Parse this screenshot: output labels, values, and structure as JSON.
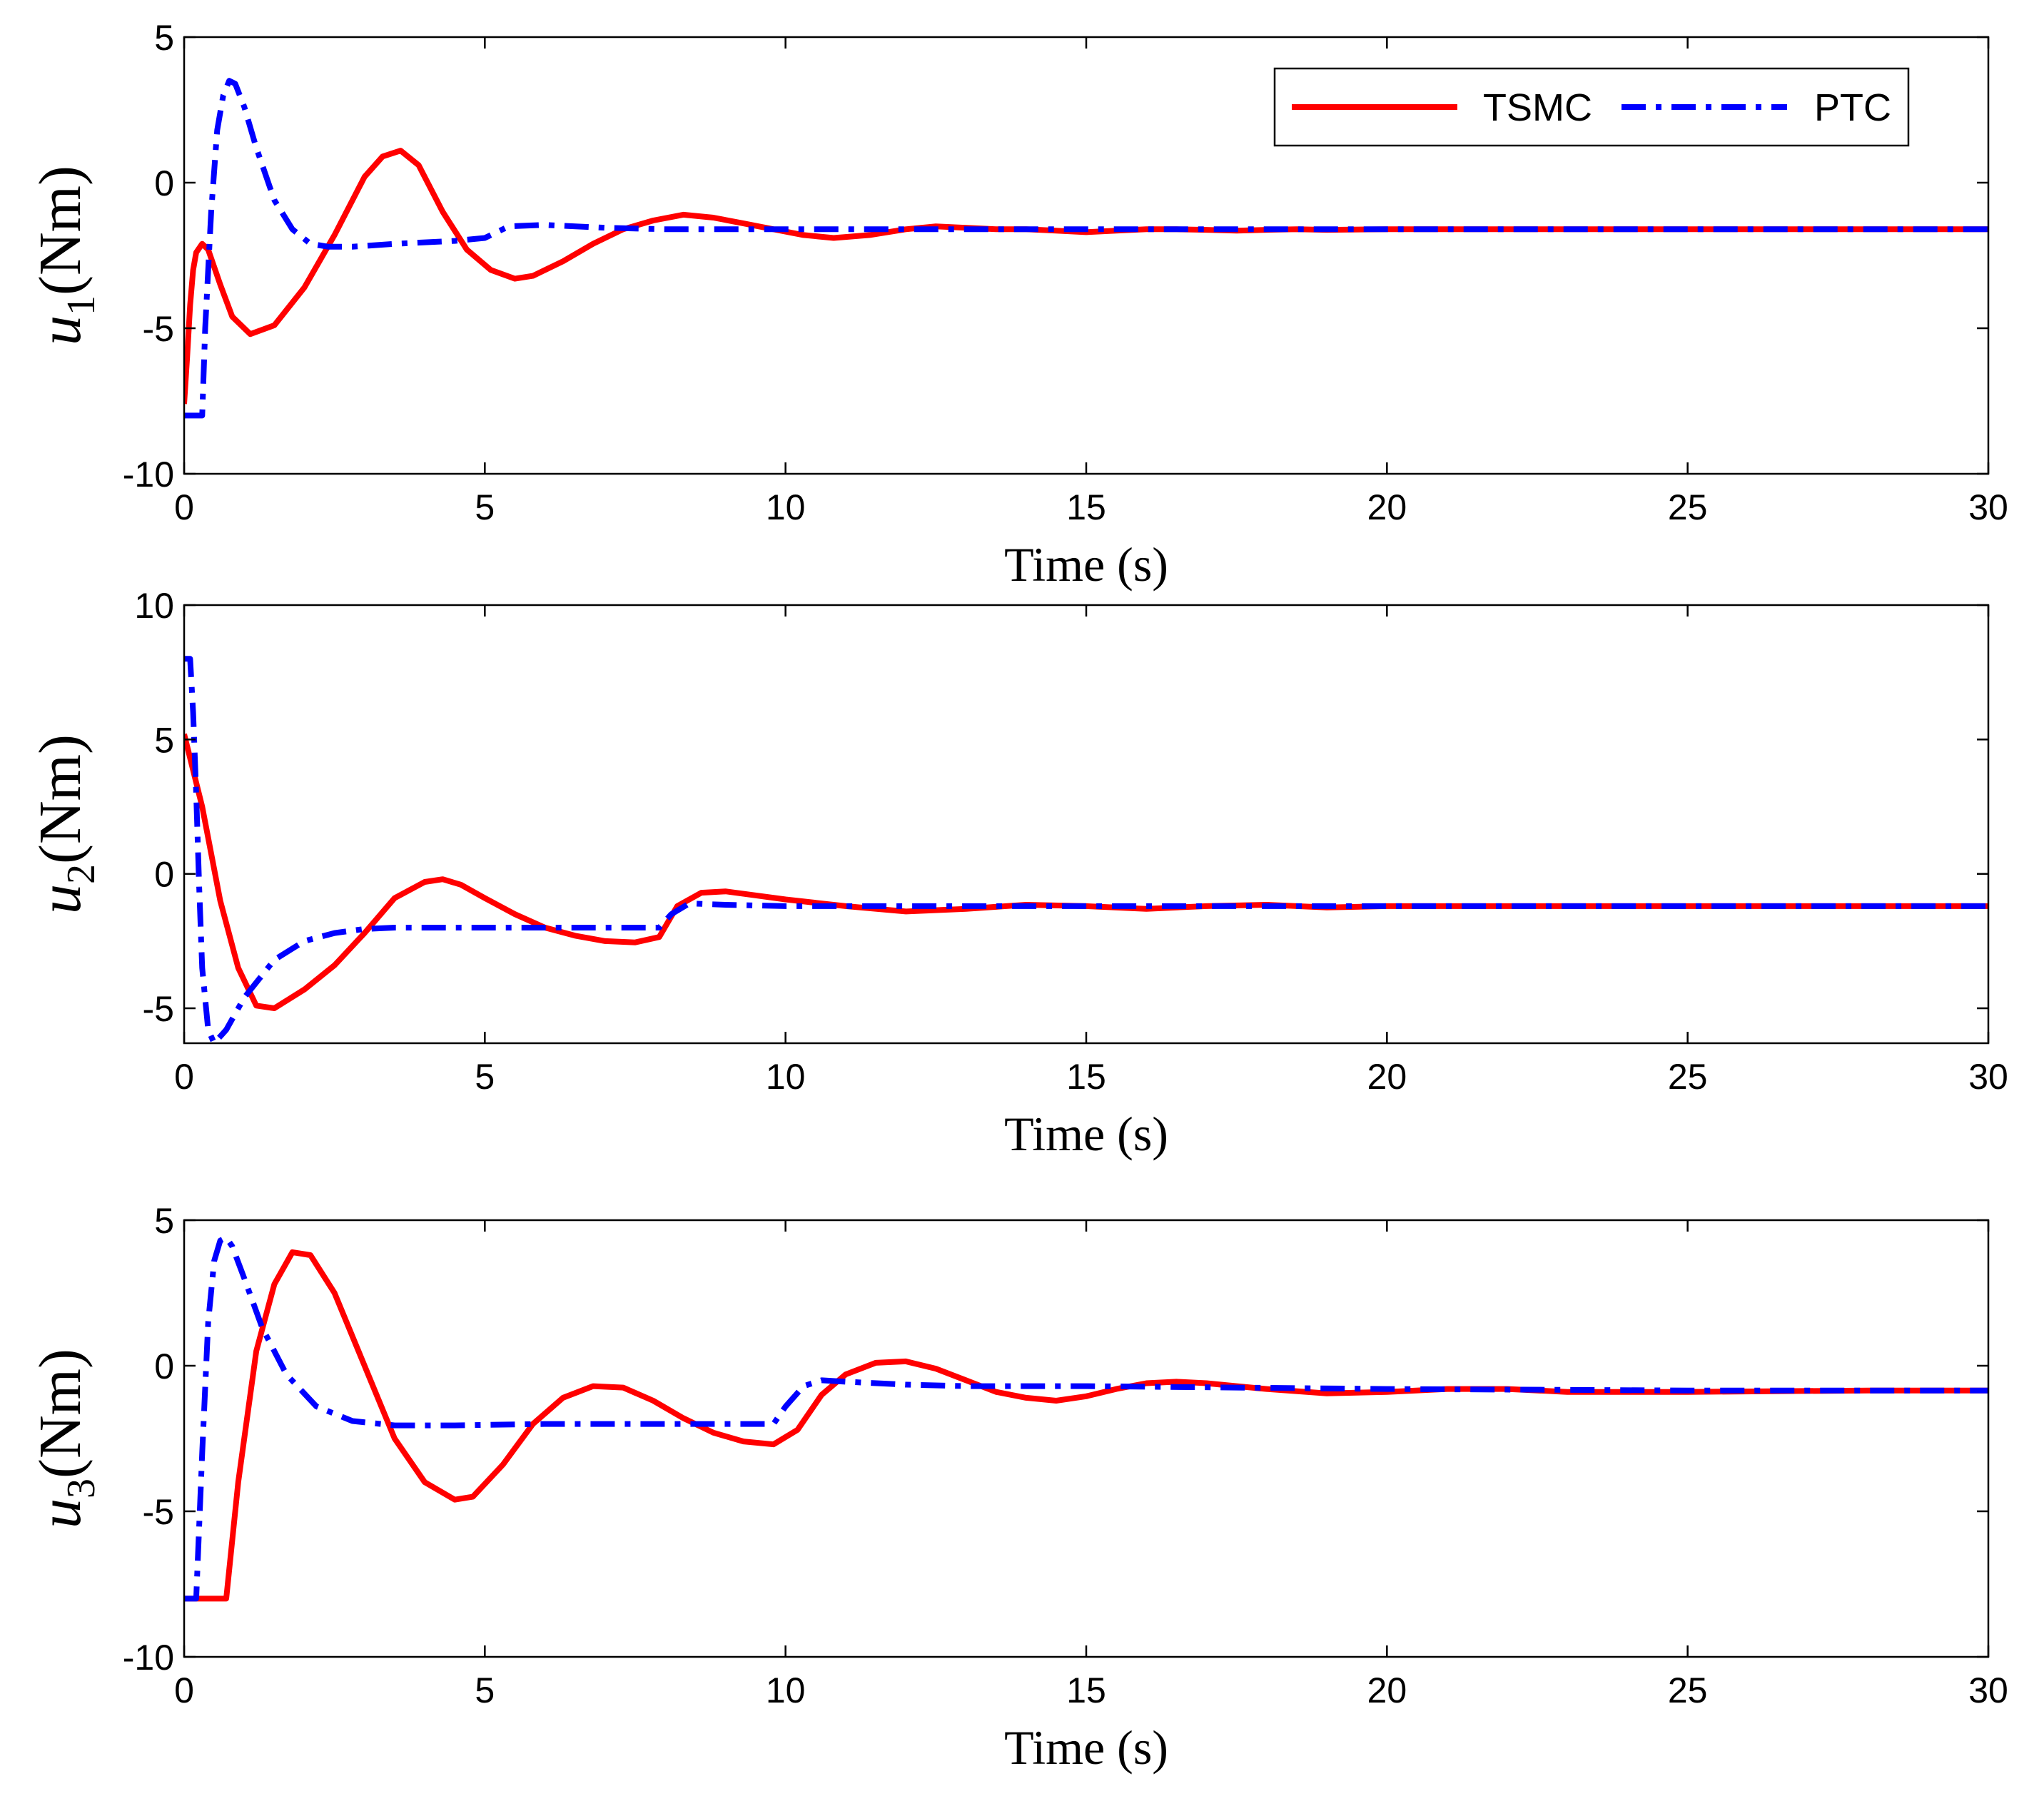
{
  "chart_data": [
    {
      "type": "line",
      "ylabel_var": "u",
      "ylabel_sub": "1",
      "ylabel_unit": "(Nm)",
      "xlabel": "Time (s)",
      "xlim": [
        0,
        30
      ],
      "ylim": [
        -10,
        5
      ],
      "xticks": [
        "0",
        "5",
        "10",
        "15",
        "20",
        "25",
        "30"
      ],
      "yticks": [
        "-10",
        "-5",
        "0",
        "5"
      ],
      "legend": "top-right",
      "series": [
        {
          "name": "TSMC",
          "color": "#ff0000",
          "style": "solid",
          "x": [
            0,
            0.05,
            0.1,
            0.15,
            0.2,
            0.3,
            0.4,
            0.6,
            0.8,
            1.1,
            1.5,
            2,
            2.5,
            3,
            3.3,
            3.6,
            3.9,
            4.3,
            4.7,
            5.1,
            5.5,
            5.8,
            6.3,
            6.8,
            7.3,
            7.8,
            8.3,
            8.8,
            9.3,
            9.8,
            10.3,
            10.8,
            11.4,
            12,
            12.5,
            13,
            13.5,
            14,
            14.5,
            15,
            15.5,
            16,
            16.5,
            17,
            17.5,
            18,
            18.5,
            19,
            20,
            22,
            25,
            28,
            30
          ],
          "y": [
            -7.6,
            -6.0,
            -4.2,
            -3.0,
            -2.4,
            -2.1,
            -2.3,
            -3.5,
            -4.6,
            -5.2,
            -4.9,
            -3.6,
            -1.8,
            0.2,
            0.9,
            1.1,
            0.6,
            -1.0,
            -2.3,
            -3.0,
            -3.3,
            -3.2,
            -2.7,
            -2.1,
            -1.6,
            -1.3,
            -1.1,
            -1.2,
            -1.4,
            -1.6,
            -1.8,
            -1.9,
            -1.8,
            -1.6,
            -1.5,
            -1.55,
            -1.6,
            -1.6,
            -1.65,
            -1.7,
            -1.65,
            -1.6,
            -1.6,
            -1.62,
            -1.65,
            -1.62,
            -1.6,
            -1.62,
            -1.6,
            -1.6,
            -1.6,
            -1.6,
            -1.6
          ]
        },
        {
          "name": "PTC",
          "color": "#0000ff",
          "style": "dashdot",
          "x": [
            0,
            0.3,
            0.35,
            0.45,
            0.55,
            0.65,
            0.75,
            0.85,
            1.0,
            1.2,
            1.5,
            1.8,
            2.1,
            2.4,
            2.8,
            3.5,
            4.5,
            5.0,
            5.4,
            6.0,
            7.0,
            8.0,
            10,
            12,
            15,
            20,
            25,
            30
          ],
          "y": [
            -8.0,
            -8.0,
            -5.0,
            -1.0,
            1.8,
            3.0,
            3.5,
            3.4,
            2.6,
            1.2,
            -0.6,
            -1.6,
            -2.1,
            -2.2,
            -2.2,
            -2.1,
            -2.0,
            -1.9,
            -1.5,
            -1.45,
            -1.55,
            -1.6,
            -1.6,
            -1.6,
            -1.6,
            -1.6,
            -1.6,
            -1.6
          ]
        }
      ]
    },
    {
      "type": "line",
      "ylabel_var": "u",
      "ylabel_sub": "2",
      "ylabel_unit": "(Nm)",
      "xlabel": "Time (s)",
      "xlim": [
        0,
        30
      ],
      "ylim": [
        -6.3,
        10
      ],
      "xticks": [
        "0",
        "5",
        "10",
        "15",
        "20",
        "25",
        "30"
      ],
      "yticks": [
        "-5",
        "0",
        "5",
        "10"
      ],
      "legend": "none",
      "series": [
        {
          "name": "TSMC",
          "color": "#ff0000",
          "style": "solid",
          "x": [
            0,
            0.3,
            0.6,
            0.9,
            1.2,
            1.5,
            2.0,
            2.5,
            3.0,
            3.5,
            4.0,
            4.3,
            4.6,
            5.0,
            5.5,
            6.0,
            6.5,
            7.0,
            7.5,
            7.9,
            8.2,
            8.6,
            9.0,
            9.5,
            10,
            11,
            12,
            13,
            14,
            15,
            16,
            17,
            18,
            19,
            20,
            22,
            25,
            30
          ],
          "y": [
            5.2,
            2.5,
            -1.0,
            -3.5,
            -4.9,
            -5.0,
            -4.3,
            -3.4,
            -2.2,
            -0.9,
            -0.3,
            -0.2,
            -0.4,
            -0.9,
            -1.5,
            -2.0,
            -2.3,
            -2.5,
            -2.55,
            -2.35,
            -1.2,
            -0.7,
            -0.65,
            -0.8,
            -0.95,
            -1.2,
            -1.4,
            -1.3,
            -1.15,
            -1.2,
            -1.3,
            -1.2,
            -1.15,
            -1.25,
            -1.2,
            -1.2,
            -1.2,
            -1.2
          ]
        },
        {
          "name": "PTC",
          "color": "#0000ff",
          "style": "dashdot",
          "x": [
            0,
            0.1,
            0.15,
            0.2,
            0.25,
            0.3,
            0.4,
            0.5,
            0.7,
            1.0,
            1.5,
            2.0,
            2.5,
            3.0,
            3.5,
            4.5,
            6,
            7.9,
            8.1,
            8.4,
            9.0,
            10,
            12,
            15,
            20,
            25,
            30
          ],
          "y": [
            8.0,
            8.0,
            6.0,
            3.0,
            -0.5,
            -3.5,
            -5.8,
            -6.3,
            -5.8,
            -4.6,
            -3.2,
            -2.5,
            -2.2,
            -2.05,
            -2.0,
            -2.0,
            -2.0,
            -2.0,
            -1.5,
            -1.1,
            -1.15,
            -1.2,
            -1.2,
            -1.2,
            -1.2,
            -1.2,
            -1.2
          ]
        }
      ]
    },
    {
      "type": "line",
      "ylabel_var": "u",
      "ylabel_sub": "3",
      "ylabel_unit": "(Nm)",
      "xlabel": "Time (s)",
      "xlim": [
        0,
        30
      ],
      "ylim": [
        -10,
        5
      ],
      "xticks": [
        "0",
        "5",
        "10",
        "15",
        "20",
        "25",
        "30"
      ],
      "yticks": [
        "-10",
        "-5",
        "0",
        "5"
      ],
      "legend": "none",
      "series": [
        {
          "name": "TSMC",
          "color": "#ff0000",
          "style": "solid",
          "x": [
            0,
            0.7,
            0.9,
            1.2,
            1.5,
            1.8,
            2.1,
            2.5,
            3.0,
            3.5,
            4.0,
            4.5,
            4.8,
            5.3,
            5.8,
            6.3,
            6.8,
            7.3,
            7.8,
            8.3,
            8.8,
            9.3,
            9.8,
            10.2,
            10.6,
            11.0,
            11.5,
            12.0,
            12.5,
            13.0,
            13.5,
            14.0,
            14.5,
            15.0,
            15.5,
            16.0,
            16.5,
            17.0,
            17.5,
            18.0,
            19.0,
            20.0,
            21.0,
            22.0,
            23.0,
            25.0,
            28.0,
            30.0
          ],
          "y": [
            -8.0,
            -8.0,
            -4.0,
            0.5,
            2.8,
            3.9,
            3.8,
            2.5,
            0.0,
            -2.5,
            -4.0,
            -4.6,
            -4.5,
            -3.4,
            -2.0,
            -1.1,
            -0.7,
            -0.75,
            -1.2,
            -1.8,
            -2.3,
            -2.6,
            -2.7,
            -2.2,
            -1.0,
            -0.3,
            0.1,
            0.15,
            -0.1,
            -0.5,
            -0.9,
            -1.1,
            -1.2,
            -1.05,
            -0.8,
            -0.6,
            -0.55,
            -0.6,
            -0.7,
            -0.8,
            -0.95,
            -0.9,
            -0.8,
            -0.8,
            -0.9,
            -0.9,
            -0.85,
            -0.85
          ]
        },
        {
          "name": "PTC",
          "color": "#0000ff",
          "style": "dashdot",
          "x": [
            0,
            0.2,
            0.3,
            0.4,
            0.5,
            0.6,
            0.7,
            0.8,
            1.0,
            1.3,
            1.7,
            2.2,
            2.8,
            3.5,
            4.5,
            6,
            8,
            9.8,
            10.0,
            10.3,
            10.6,
            11,
            12,
            13,
            15,
            20,
            25,
            30
          ],
          "y": [
            -8.0,
            -8.0,
            -3.0,
            1.5,
            3.6,
            4.3,
            4.4,
            4.1,
            3.0,
            1.3,
            -0.3,
            -1.4,
            -1.9,
            -2.05,
            -2.05,
            -2.0,
            -2.0,
            -2.0,
            -1.4,
            -0.7,
            -0.5,
            -0.55,
            -0.65,
            -0.7,
            -0.7,
            -0.8,
            -0.85,
            -0.85
          ]
        }
      ]
    }
  ]
}
